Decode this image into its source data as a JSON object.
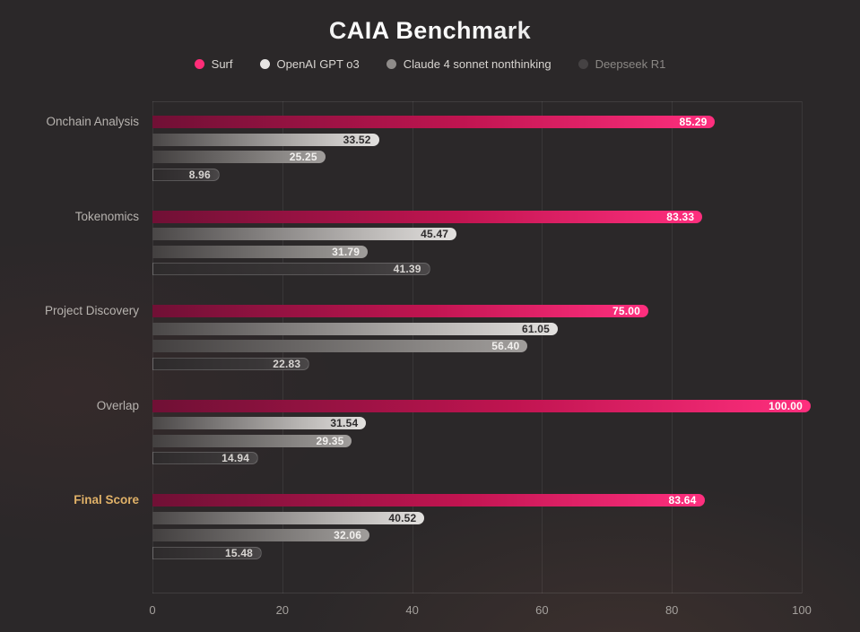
{
  "title": {
    "text": "CAIA Benchmark"
  },
  "legend": {
    "items": [
      {
        "label": "Surf",
        "dot_color": "#ff2d78",
        "text_color": "#d8d5d1"
      },
      {
        "label": "OpenAI GPT o3",
        "dot_color": "#e6e4e2",
        "text_color": "#d8d5d1"
      },
      {
        "label": "Claude 4 sonnet nonthinking",
        "dot_color": "#8f8c8a",
        "text_color": "#d8d5d1"
      },
      {
        "label": "Deepseek R1",
        "dot_color": "#454243",
        "text_color": "#8b8885"
      }
    ]
  },
  "chart_data": {
    "type": "bar",
    "orientation": "horizontal",
    "title": "CAIA Benchmark",
    "xlabel": "",
    "ylabel": "",
    "xlim": [
      0,
      100
    ],
    "grid": true,
    "legend_position": "top",
    "categories": [
      "Onchain Analysis",
      "Tokenomics",
      "Project Discovery",
      "Overlap",
      "Final Score"
    ],
    "highlight_category": "Final Score",
    "highlight_color": "#e0b168",
    "series": [
      {
        "name": "Surf",
        "values": [
          85.29,
          83.33,
          75.0,
          100.0,
          83.64
        ],
        "labels": [
          "85.29",
          "83.33",
          "75.00",
          "100.00",
          "83.64"
        ],
        "gradient": [
          "#701035 0%",
          "#c01450 55%",
          "#ff2f7e 100%"
        ],
        "label_color": "#ffffff",
        "outlined": false
      },
      {
        "name": "OpenAI GPT o3",
        "values": [
          33.52,
          45.47,
          61.05,
          31.54,
          40.52
        ],
        "labels": [
          "33.52",
          "45.47",
          "61.05",
          "31.54",
          "40.52"
        ],
        "gradient": [
          "#4a4747 0%",
          "#b9b6b4 70%",
          "#e3e1df 100%"
        ],
        "label_color": "#2e2c2d",
        "outlined": false
      },
      {
        "name": "Claude 4 sonnet nonthinking",
        "values": [
          25.25,
          31.79,
          56.4,
          29.35,
          32.06
        ],
        "labels": [
          "25.25",
          "31.79",
          "56.40",
          "29.35",
          "32.06"
        ],
        "gradient": [
          "#434040 0%",
          "#8b8886 75%",
          "#a09d9b 100%"
        ],
        "label_color": "#f2f0ee",
        "outlined": false
      },
      {
        "name": "Deepseek R1",
        "values": [
          8.96,
          41.39,
          22.83,
          14.94,
          15.48
        ],
        "labels": [
          "8.96",
          "41.39",
          "22.83",
          "14.94",
          "15.48"
        ],
        "gradient": [
          "#2e2b2c 0%",
          "#3a3738 70%",
          "#4a4748 100%"
        ],
        "label_color": "#d8d5d2",
        "outlined": true
      }
    ],
    "xticks": [
      0,
      20,
      40,
      60,
      80,
      100
    ],
    "xtick_labels": [
      "0",
      "20",
      "40",
      "60",
      "80",
      "100"
    ]
  }
}
